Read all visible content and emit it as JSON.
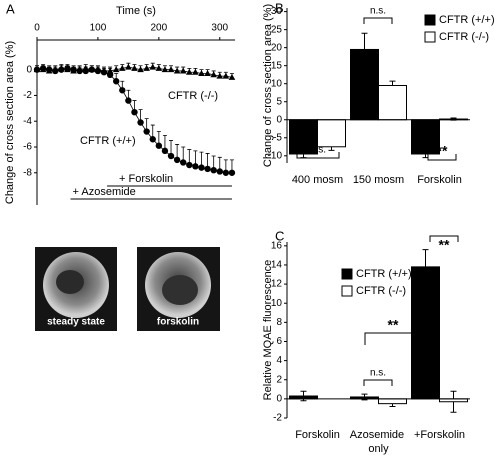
{
  "chart_data": [
    {
      "panel": "A",
      "type": "line",
      "xlabel": "Time (s)",
      "ylabel": "Change of cross section area (%)",
      "xlim": [
        0,
        325
      ],
      "xticks": [
        0,
        100,
        200,
        300
      ],
      "ylim": [
        -10.5,
        2.3
      ],
      "yticks": [
        0,
        -2,
        -4,
        -6,
        -8
      ],
      "x": [
        0,
        10,
        20,
        30,
        40,
        50,
        60,
        70,
        80,
        90,
        100,
        110,
        120,
        130,
        140,
        150,
        160,
        170,
        180,
        190,
        200,
        210,
        220,
        230,
        240,
        250,
        260,
        270,
        280,
        290,
        300,
        310,
        320
      ],
      "series": [
        {
          "name": "CFTR (+/+)",
          "color": "#000000",
          "marker": "circle",
          "values": [
            0,
            0.1,
            0,
            -0.1,
            0,
            0.1,
            0,
            -0.1,
            -0.1,
            0,
            -0.1,
            -0.2,
            -0.4,
            -0.9,
            -1.6,
            -2.4,
            -3.3,
            -4.1,
            -4.8,
            -5.4,
            -5.9,
            -6.3,
            -6.7,
            -7.0,
            -7.2,
            -7.4,
            -7.5,
            -7.6,
            -7.7,
            -7.8,
            -7.9,
            -8.0,
            -8.0
          ],
          "errors": [
            0.3,
            0.3,
            0.3,
            0.3,
            0.3,
            0.3,
            0.3,
            0.3,
            0.3,
            0.3,
            0.3,
            0.3,
            0.5,
            0.6,
            0.7,
            0.8,
            0.9,
            1.0,
            1.0,
            1.1,
            1.1,
            1.2,
            1.2,
            1.2,
            1.2,
            1.2,
            1.2,
            1.2,
            1.2,
            1.1,
            1.1,
            1.0,
            1.0
          ]
        },
        {
          "name": "CFTR (-/-)",
          "color": "#000000",
          "marker": "triangle",
          "values": [
            0,
            0,
            -0.1,
            0,
            0.1,
            0,
            -0.1,
            0,
            0.1,
            0,
            0,
            -0.1,
            -0.1,
            0,
            0.1,
            0.2,
            0.1,
            0,
            0.1,
            0.2,
            0.1,
            0,
            0,
            -0.1,
            -0.1,
            -0.2,
            -0.2,
            -0.3,
            -0.3,
            -0.4,
            -0.5,
            -0.5,
            -0.6
          ],
          "errors": [
            0.3,
            0.3,
            0.3,
            0.3,
            0.3,
            0.3,
            0.3,
            0.3,
            0.3,
            0.3,
            0.3,
            0.3,
            0.3,
            0.3,
            0.3,
            0.3,
            0.3,
            0.3,
            0.3,
            0.3,
            0.3,
            0.3,
            0.3,
            0.3,
            0.3,
            0.3,
            0.3,
            0.3,
            0.3,
            0.3,
            0.3,
            0.3,
            0.3
          ]
        }
      ],
      "treatments": [
        {
          "label": "+ Forskolin",
          "start": 115,
          "end": 320
        },
        {
          "label": "+ Azosemide",
          "start": 55,
          "end": 320
        }
      ]
    },
    {
      "panel": "B",
      "type": "bar",
      "ylabel": "Change of cross section area (%)",
      "categories": [
        "400 mosm",
        "150 mosm",
        "Forskolin"
      ],
      "ylim": [
        -12,
        31
      ],
      "yticks": [
        -10,
        -5,
        0,
        5,
        10,
        15,
        20,
        25,
        30
      ],
      "legend": "upper right",
      "series": [
        {
          "name": "CFTR (+/+)",
          "color": "#000000",
          "values": [
            -9.5,
            19.5,
            -9.5
          ],
          "errors": [
            1.0,
            4.5,
            1.0
          ]
        },
        {
          "name": "CFTR (-/-)",
          "color": "#ffffff",
          "values": [
            -7.5,
            9.5,
            0.2
          ],
          "errors": [
            1.0,
            1.2,
            0.3
          ]
        }
      ],
      "annotations": [
        "n.s.",
        "n.s.",
        "**"
      ]
    },
    {
      "panel": "C",
      "type": "bar",
      "ylabel": "Relative MQAE fluorescence",
      "categories": [
        "Forskolin",
        "Azosemide only",
        "+Forskolin"
      ],
      "ylim": [
        -2,
        16.4
      ],
      "yticks": [
        -2,
        0,
        2,
        4,
        6,
        8,
        10,
        12,
        14,
        16
      ],
      "legend": "upper left",
      "series": [
        {
          "name": "CFTR (+/+)",
          "color": "#000000",
          "values": [
            0.3,
            0.2,
            13.8
          ],
          "errors": [
            0.5,
            0.3,
            1.8
          ]
        },
        {
          "name": "CFTR (-/-)",
          "color": "#ffffff",
          "values": [
            null,
            -0.5,
            -0.3
          ],
          "errors": [
            null,
            0.3,
            1.1
          ]
        }
      ],
      "annotations": [
        "n.s.",
        "**",
        "**"
      ]
    }
  ],
  "images": [
    {
      "caption": "steady state"
    },
    {
      "caption": "forskolin"
    }
  ]
}
